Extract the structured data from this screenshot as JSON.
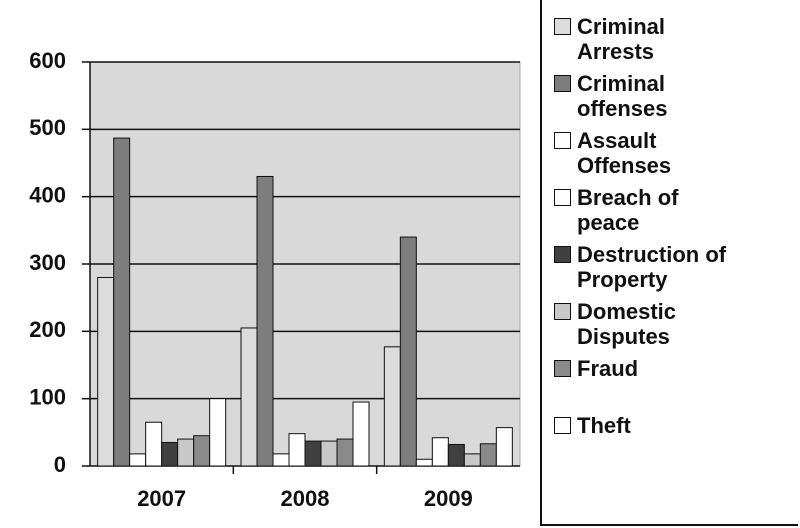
{
  "chart_data": {
    "type": "bar",
    "categories": [
      "2007",
      "2008",
      "2009"
    ],
    "series": [
      {
        "name": "Criminal Arrests",
        "color": "#dcdcdc",
        "values": [
          280,
          205,
          177
        ]
      },
      {
        "name": "Criminal offenses",
        "color": "#7d7d7d",
        "values": [
          487,
          430,
          340
        ]
      },
      {
        "name": "Assault Offenses",
        "color": "#ffffff",
        "values": [
          18,
          18,
          10
        ]
      },
      {
        "name": "Breach of peace",
        "color": "#ffffff",
        "values": [
          65,
          48,
          42
        ]
      },
      {
        "name": "Destruction of Property",
        "color": "#404040",
        "values": [
          35,
          37,
          32
        ]
      },
      {
        "name": "Domestic Disputes",
        "color": "#c8c8c8",
        "values": [
          40,
          37,
          18
        ]
      },
      {
        "name": "Fraud",
        "color": "#8a8a8a",
        "values": [
          45,
          40,
          33
        ]
      },
      {
        "name": "Theft",
        "color": "#ffffff",
        "values": [
          100,
          95,
          57
        ]
      }
    ],
    "ylim": [
      0,
      600
    ],
    "yticks": [
      0,
      100,
      200,
      300,
      400,
      500,
      600
    ],
    "grid": true
  }
}
